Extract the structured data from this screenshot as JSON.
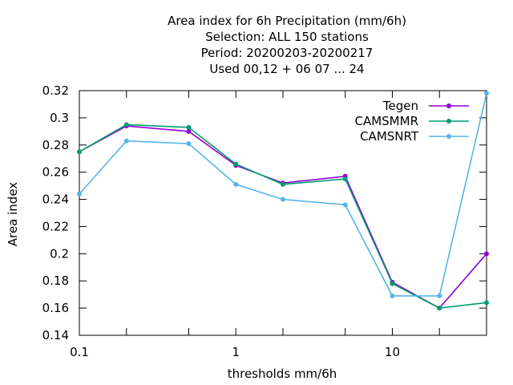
{
  "chart_data": {
    "type": "line",
    "title_lines": [
      "Area index  for 6h Precipitation (mm/6h)",
      "Selection: ALL    150 stations",
      "Period: 20200203-20200217",
      "Used  00,12  + 06 07 ... 24"
    ],
    "xlabel": "thresholds mm/6h",
    "ylabel": "Area index",
    "x_scale": "log",
    "xlim": [
      0.1,
      40
    ],
    "ylim": [
      0.14,
      0.32
    ],
    "x_ticks": [
      {
        "value": 0.1,
        "label": "0.1"
      },
      {
        "value": 1,
        "label": "1"
      },
      {
        "value": 10,
        "label": "10"
      }
    ],
    "x_minor_ticks": [
      0.2,
      0.5,
      2,
      5,
      20
    ],
    "y_ticks": [
      {
        "value": 0.14,
        "label": "0.14"
      },
      {
        "value": 0.16,
        "label": "0.16"
      },
      {
        "value": 0.18,
        "label": "0.18"
      },
      {
        "value": 0.2,
        "label": "0.2"
      },
      {
        "value": 0.22,
        "label": "0.22"
      },
      {
        "value": 0.24,
        "label": "0.24"
      },
      {
        "value": 0.26,
        "label": "0.26"
      },
      {
        "value": 0.28,
        "label": "0.28"
      },
      {
        "value": 0.3,
        "label": "0.3"
      },
      {
        "value": 0.32,
        "label": "0.32"
      }
    ],
    "grid": false,
    "legend_position": "top-right",
    "x": [
      0.1,
      0.2,
      0.5,
      1,
      2,
      5,
      10,
      20,
      40
    ],
    "series": [
      {
        "name": "Tegen",
        "color": "#9400d3",
        "values": [
          0.275,
          0.294,
          0.29,
          0.265,
          0.252,
          0.257,
          0.179,
          0.16,
          0.2
        ]
      },
      {
        "name": "CAMSMMR",
        "color": "#009e73",
        "values": [
          0.275,
          0.295,
          0.293,
          0.266,
          0.251,
          0.255,
          0.178,
          0.16,
          0.164
        ]
      },
      {
        "name": "CAMSNRT",
        "color": "#56b4e9",
        "values": [
          0.244,
          0.283,
          0.281,
          0.251,
          0.24,
          0.236,
          0.169,
          0.169,
          0.318
        ]
      }
    ]
  }
}
